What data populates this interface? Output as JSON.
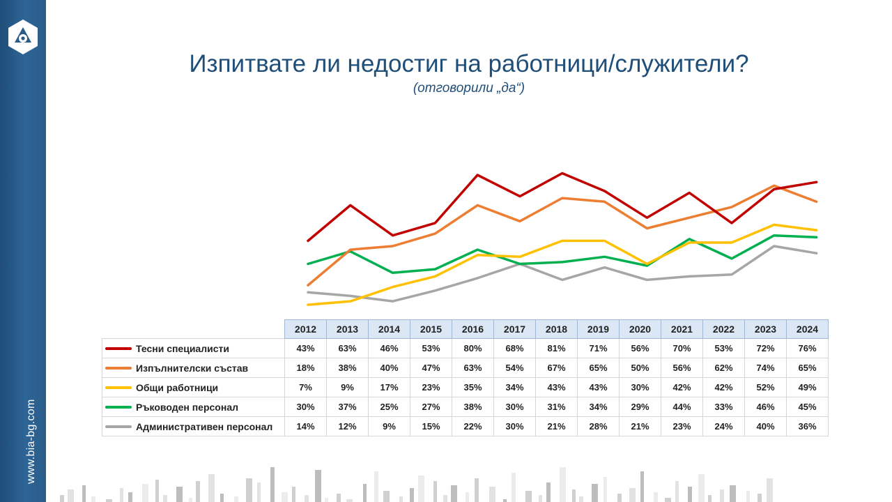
{
  "slide": {
    "title": "Изпитвате ли недостиг на работници/служители?",
    "subtitle": "(отговорили „да“)",
    "website": "www.bia-bg.com",
    "logo": "bia-logo-icon",
    "colors": {
      "sidebar": "#2a5c8a",
      "title": "#1f4e79",
      "table_header": "#dbe7f4"
    }
  },
  "chart_data": {
    "type": "line",
    "title": "Изпитвате ли недостиг на работници/служители?",
    "subtitle": "(отговорили „да“)",
    "xlabel": "",
    "ylabel": "",
    "ylim": [
      0,
      90
    ],
    "grid": false,
    "legend": "data-table-left",
    "categories": [
      "2012",
      "2013",
      "2014",
      "2015",
      "2016",
      "2017",
      "2018",
      "2019",
      "2020",
      "2021",
      "2022",
      "2023",
      "2024"
    ],
    "series": [
      {
        "name": "Тесни специалисти",
        "color": "#c00000",
        "values": [
          43,
          63,
          46,
          53,
          80,
          68,
          81,
          71,
          56,
          70,
          53,
          72,
          76
        ],
        "labels": [
          "43%",
          "63%",
          "46%",
          "53%",
          "80%",
          "68%",
          "81%",
          "71%",
          "56%",
          "70%",
          "53%",
          "72%",
          "76%"
        ]
      },
      {
        "name": "Изпълнителски състав",
        "color": "#ed7d31",
        "values": [
          18,
          38,
          40,
          47,
          63,
          54,
          67,
          65,
          50,
          56,
          62,
          74,
          65
        ],
        "labels": [
          "18%",
          "38%",
          "40%",
          "47%",
          "63%",
          "54%",
          "67%",
          "65%",
          "50%",
          "56%",
          "62%",
          "74%",
          "65%"
        ]
      },
      {
        "name": "Общи работници",
        "color": "#ffc000",
        "values": [
          7,
          9,
          17,
          23,
          35,
          34,
          43,
          43,
          30,
          42,
          42,
          52,
          49
        ],
        "labels": [
          "7%",
          "9%",
          "17%",
          "23%",
          "35%",
          "34%",
          "43%",
          "43%",
          "30%",
          "42%",
          "42%",
          "52%",
          "49%"
        ]
      },
      {
        "name": "Ръководен персонал",
        "color": "#00b050",
        "values": [
          30,
          37,
          25,
          27,
          38,
          30,
          31,
          34,
          29,
          44,
          33,
          46,
          45
        ],
        "labels": [
          "30%",
          "37%",
          "25%",
          "27%",
          "38%",
          "30%",
          "31%",
          "34%",
          "29%",
          "44%",
          "33%",
          "46%",
          "45%"
        ]
      },
      {
        "name": "Административен персонал",
        "color": "#a6a6a6",
        "values": [
          14,
          12,
          9,
          15,
          22,
          30,
          21,
          28,
          21,
          23,
          24,
          40,
          36
        ],
        "labels": [
          "14%",
          "12%",
          "9%",
          "15%",
          "22%",
          "30%",
          "21%",
          "28%",
          "21%",
          "23%",
          "24%",
          "40%",
          "36%"
        ]
      }
    ]
  }
}
